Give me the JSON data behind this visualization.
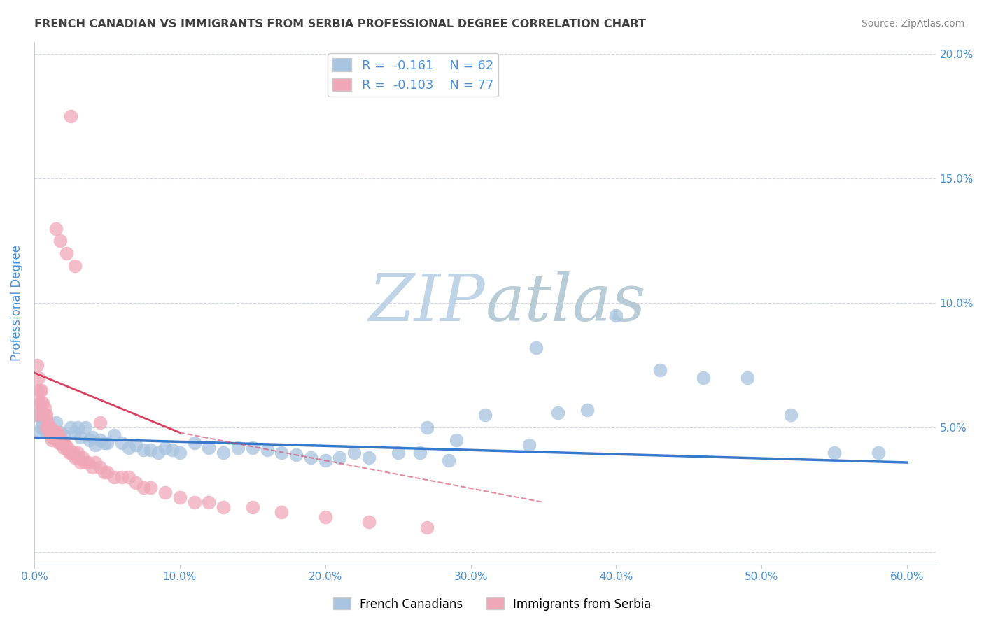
{
  "title": "FRENCH CANADIAN VS IMMIGRANTS FROM SERBIA PROFESSIONAL DEGREE CORRELATION CHART",
  "source": "Source: ZipAtlas.com",
  "ylabel": "Professional Degree",
  "xlim": [
    0.0,
    0.62
  ],
  "ylim": [
    -0.005,
    0.205
  ],
  "xticks": [
    0.0,
    0.1,
    0.2,
    0.3,
    0.4,
    0.5,
    0.6
  ],
  "xticklabels": [
    "0.0%",
    "10.0%",
    "20.0%",
    "30.0%",
    "40.0%",
    "50.0%",
    "60.0%"
  ],
  "yticks_right": [
    0.0,
    0.05,
    0.1,
    0.15,
    0.2
  ],
  "yticklabels_right": [
    "",
    "5.0%",
    "10.0%",
    "15.0%",
    "20.0%"
  ],
  "blue_R": -0.161,
  "blue_N": 62,
  "pink_R": -0.103,
  "pink_N": 77,
  "blue_color": "#a8c4e0",
  "pink_color": "#f0a8b8",
  "blue_line_color": "#3878c8",
  "pink_line_color": "#d84060",
  "blue_scatter_x": [
    0.002,
    0.003,
    0.004,
    0.005,
    0.006,
    0.008,
    0.01,
    0.012,
    0.015,
    0.018,
    0.02,
    0.025,
    0.028,
    0.03,
    0.032,
    0.035,
    0.038,
    0.04,
    0.042,
    0.045,
    0.048,
    0.05,
    0.055,
    0.06,
    0.065,
    0.07,
    0.075,
    0.08,
    0.085,
    0.09,
    0.095,
    0.1,
    0.11,
    0.12,
    0.13,
    0.14,
    0.15,
    0.16,
    0.17,
    0.18,
    0.19,
    0.2,
    0.21,
    0.22,
    0.23,
    0.25,
    0.27,
    0.29,
    0.31,
    0.34,
    0.36,
    0.38,
    0.4,
    0.43,
    0.46,
    0.49,
    0.52,
    0.55,
    0.58,
    0.345,
    0.265,
    0.285
  ],
  "blue_scatter_y": [
    0.055,
    0.048,
    0.055,
    0.05,
    0.052,
    0.048,
    0.05,
    0.046,
    0.052,
    0.048,
    0.047,
    0.05,
    0.048,
    0.05,
    0.046,
    0.05,
    0.045,
    0.046,
    0.043,
    0.045,
    0.044,
    0.044,
    0.047,
    0.044,
    0.042,
    0.043,
    0.041,
    0.041,
    0.04,
    0.042,
    0.041,
    0.04,
    0.044,
    0.042,
    0.04,
    0.042,
    0.042,
    0.041,
    0.04,
    0.039,
    0.038,
    0.037,
    0.038,
    0.04,
    0.038,
    0.04,
    0.05,
    0.045,
    0.055,
    0.043,
    0.056,
    0.057,
    0.095,
    0.073,
    0.07,
    0.07,
    0.055,
    0.04,
    0.04,
    0.082,
    0.04,
    0.037
  ],
  "pink_scatter_x": [
    0.001,
    0.002,
    0.002,
    0.003,
    0.003,
    0.004,
    0.004,
    0.005,
    0.005,
    0.006,
    0.006,
    0.007,
    0.007,
    0.008,
    0.008,
    0.009,
    0.009,
    0.01,
    0.01,
    0.011,
    0.011,
    0.012,
    0.012,
    0.013,
    0.013,
    0.014,
    0.015,
    0.015,
    0.016,
    0.016,
    0.017,
    0.018,
    0.018,
    0.019,
    0.02,
    0.02,
    0.021,
    0.022,
    0.023,
    0.024,
    0.025,
    0.026,
    0.027,
    0.028,
    0.03,
    0.03,
    0.032,
    0.033,
    0.035,
    0.037,
    0.04,
    0.042,
    0.045,
    0.048,
    0.05,
    0.055,
    0.06,
    0.065,
    0.07,
    0.075,
    0.08,
    0.09,
    0.1,
    0.11,
    0.12,
    0.13,
    0.15,
    0.17,
    0.2,
    0.23,
    0.27,
    0.045,
    0.025,
    0.015,
    0.018,
    0.022,
    0.028
  ],
  "pink_scatter_y": [
    0.055,
    0.075,
    0.065,
    0.06,
    0.07,
    0.06,
    0.065,
    0.06,
    0.065,
    0.055,
    0.06,
    0.058,
    0.055,
    0.055,
    0.05,
    0.052,
    0.05,
    0.05,
    0.048,
    0.048,
    0.05,
    0.048,
    0.045,
    0.046,
    0.048,
    0.046,
    0.046,
    0.048,
    0.046,
    0.048,
    0.044,
    0.044,
    0.046,
    0.044,
    0.044,
    0.042,
    0.043,
    0.042,
    0.042,
    0.04,
    0.04,
    0.04,
    0.04,
    0.038,
    0.038,
    0.04,
    0.036,
    0.038,
    0.036,
    0.036,
    0.034,
    0.036,
    0.034,
    0.032,
    0.032,
    0.03,
    0.03,
    0.03,
    0.028,
    0.026,
    0.026,
    0.024,
    0.022,
    0.02,
    0.02,
    0.018,
    0.018,
    0.016,
    0.014,
    0.012,
    0.01,
    0.052,
    0.175,
    0.13,
    0.125,
    0.12,
    0.115
  ],
  "watermark_zip": "ZIP",
  "watermark_atlas": "atlas",
  "watermark_color_zip": "#c0d4e8",
  "watermark_color_atlas": "#b8ccd8",
  "background_color": "#ffffff",
  "grid_color": "#c8d0d8",
  "title_color": "#404040",
  "axis_label_color": "#4a90d9",
  "tick_label_color": "#4a90d9",
  "legend_color": "#4a90d9",
  "figsize": [
    14.06,
    8.92
  ],
  "dpi": 100
}
